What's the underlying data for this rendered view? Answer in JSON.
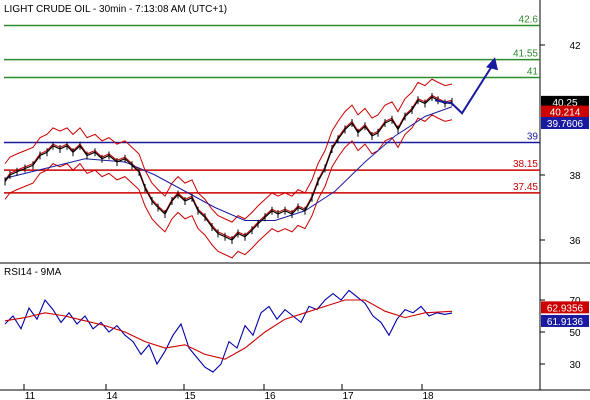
{
  "chart_data": [
    {
      "type": "line",
      "title": "LIGHT CRUDE OIL - 30min - 7:13:08 AM (UTC+1)",
      "ylim": [
        35.0,
        43.0
      ],
      "y_ticks": [
        36,
        38,
        42
      ],
      "x_tick_labels": [
        "11",
        "14",
        "15",
        "16",
        "17",
        "18"
      ],
      "grid": false,
      "levels": [
        {
          "label": "42.6",
          "value": 42.6,
          "color": "#2e8b2e"
        },
        {
          "label": "41.55",
          "value": 41.55,
          "color": "#2e8b2e"
        },
        {
          "label": "41",
          "value": 41.0,
          "color": "#2e8b2e"
        },
        {
          "label": "39",
          "value": 39.0,
          "color": "#1a1aa0"
        },
        {
          "label": "38.15",
          "value": 38.15,
          "color": "#cc0000"
        },
        {
          "label": "37.45",
          "value": 37.45,
          "color": "#cc0000"
        }
      ],
      "price_tags": [
        {
          "label": "40.25",
          "value": 40.25,
          "bg": "#000000"
        },
        {
          "label": "40.214",
          "value": 39.95,
          "bg": "#cc0000"
        },
        {
          "label": "39.7606",
          "value": 39.6,
          "bg": "#1a1aa0"
        }
      ],
      "price_path": {
        "x": [
          0,
          5,
          12,
          20,
          28,
          35,
          42,
          48,
          55,
          62,
          68,
          75,
          82,
          90,
          97,
          104,
          112,
          120,
          127,
          134,
          140,
          147,
          153,
          160,
          167,
          173,
          180,
          187,
          193,
          200,
          207,
          213,
          220,
          227,
          233,
          240,
          247,
          253,
          260,
          267,
          273,
          280,
          287,
          293,
          300,
          307,
          313,
          320,
          327,
          333,
          340,
          347,
          353,
          360,
          367,
          373,
          380,
          387,
          393,
          400,
          407,
          413,
          420,
          427,
          433,
          440,
          447
        ],
        "y": [
          37.8,
          38.0,
          38.1,
          38.2,
          38.3,
          38.6,
          38.7,
          38.9,
          38.8,
          38.9,
          38.7,
          38.9,
          38.6,
          38.7,
          38.5,
          38.6,
          38.4,
          38.5,
          38.3,
          38.1,
          37.6,
          37.2,
          37.0,
          36.8,
          37.2,
          37.4,
          37.2,
          37.3,
          36.9,
          36.7,
          36.4,
          36.2,
          36.1,
          36.0,
          36.2,
          36.1,
          36.3,
          36.5,
          36.7,
          36.9,
          36.8,
          36.9,
          36.8,
          37.0,
          36.9,
          37.3,
          37.8,
          38.2,
          38.8,
          39.1,
          39.4,
          39.6,
          39.3,
          39.5,
          39.2,
          39.3,
          39.6,
          39.7,
          39.4,
          39.8,
          40.0,
          40.3,
          40.2,
          40.4,
          40.3,
          40.2,
          40.25
        ]
      },
      "ma_path": {
        "x": [
          0,
          40,
          80,
          120,
          150,
          180,
          210,
          240,
          270,
          300,
          330,
          360,
          390,
          420,
          447
        ],
        "y": [
          37.9,
          38.2,
          38.5,
          38.4,
          38.0,
          37.5,
          37.0,
          36.6,
          36.6,
          36.9,
          37.5,
          38.4,
          39.2,
          39.8,
          40.1
        ]
      },
      "forecast_arrow": {
        "x": [
          430,
          447,
          457,
          490
        ],
        "y": [
          40.3,
          40.2,
          39.9,
          41.5
        ]
      }
    },
    {
      "type": "line",
      "title": "RSI14 - 9MA",
      "ylim": [
        22,
        78
      ],
      "y_ticks": [
        30,
        50,
        70
      ],
      "series": [
        {
          "name": "RSI14",
          "color": "#0000aa",
          "x": [
            0,
            8,
            16,
            24,
            32,
            40,
            48,
            56,
            64,
            72,
            80,
            88,
            96,
            104,
            112,
            120,
            128,
            136,
            144,
            152,
            160,
            168,
            176,
            184,
            192,
            200,
            208,
            216,
            224,
            232,
            240,
            248,
            256,
            264,
            272,
            280,
            288,
            296,
            304,
            312,
            320,
            328,
            336,
            344,
            352,
            360,
            368,
            376,
            384,
            392,
            400,
            408,
            416,
            424,
            432,
            440,
            447
          ],
          "y": [
            55,
            60,
            52,
            65,
            58,
            70,
            64,
            56,
            62,
            55,
            60,
            52,
            56,
            50,
            54,
            48,
            44,
            36,
            42,
            30,
            38,
            48,
            55,
            40,
            34,
            28,
            25,
            30,
            44,
            40,
            54,
            48,
            62,
            66,
            58,
            64,
            60,
            56,
            66,
            64,
            70,
            74,
            70,
            76,
            72,
            68,
            60,
            56,
            48,
            58,
            64,
            62,
            66,
            60,
            62,
            61,
            61.9
          ]
        },
        {
          "name": "9MA",
          "color": "#cc0000",
          "x": [
            0,
            20,
            40,
            60,
            80,
            100,
            120,
            140,
            160,
            180,
            200,
            220,
            240,
            260,
            280,
            300,
            320,
            340,
            360,
            380,
            400,
            420,
            447
          ],
          "y": [
            57,
            59,
            62,
            60,
            57,
            54,
            50,
            44,
            40,
            42,
            36,
            33,
            40,
            50,
            58,
            62,
            66,
            70,
            70,
            63,
            59,
            62,
            62.9
          ]
        }
      ],
      "price_tags": [
        {
          "label": "62.9356",
          "value": 62.9,
          "bg": "#cc0000"
        },
        {
          "label": "61.9136",
          "value": 61.9,
          "bg": "#1a1aa0"
        }
      ]
    }
  ]
}
